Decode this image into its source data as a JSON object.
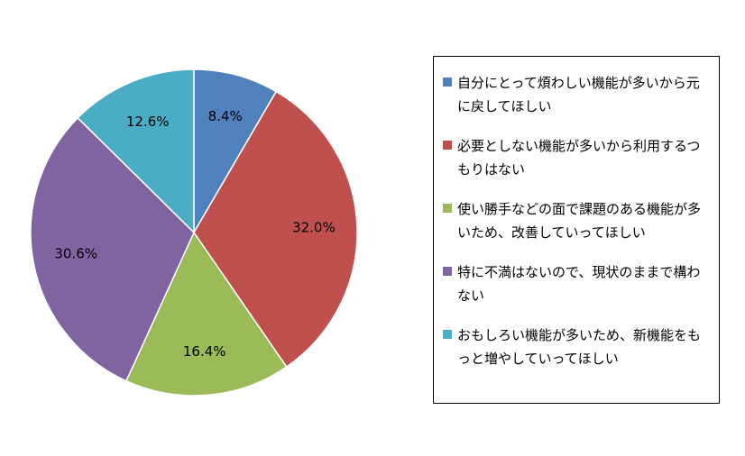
{
  "chart_data": {
    "type": "pie",
    "start_angle": "12 o'clock",
    "direction": "clockwise",
    "legend_position": "right",
    "slices": [
      {
        "label": "自分にとって煩わしい機能が多いから元に戻してほしい",
        "value": 8.4,
        "display": "8.4%",
        "color": "#4F81BD"
      },
      {
        "label": "必要としない機能が多いから利用するつもりはない",
        "value": 32.0,
        "display": "32.0%",
        "color": "#C0504D"
      },
      {
        "label": "使い勝手などの面で課題のある機能が多いため、改善していってほしい",
        "value": 16.4,
        "display": "16.4%",
        "color": "#9BBB59"
      },
      {
        "label": "特に不満はないので、現状のままで構わない",
        "value": 30.6,
        "display": "30.6%",
        "color": "#8064A2"
      },
      {
        "label": "おもしろい機能が多いため、新機能をもっと増やしていってほしい",
        "value": 12.6,
        "display": "12.6%",
        "color": "#4BACC6"
      }
    ]
  }
}
